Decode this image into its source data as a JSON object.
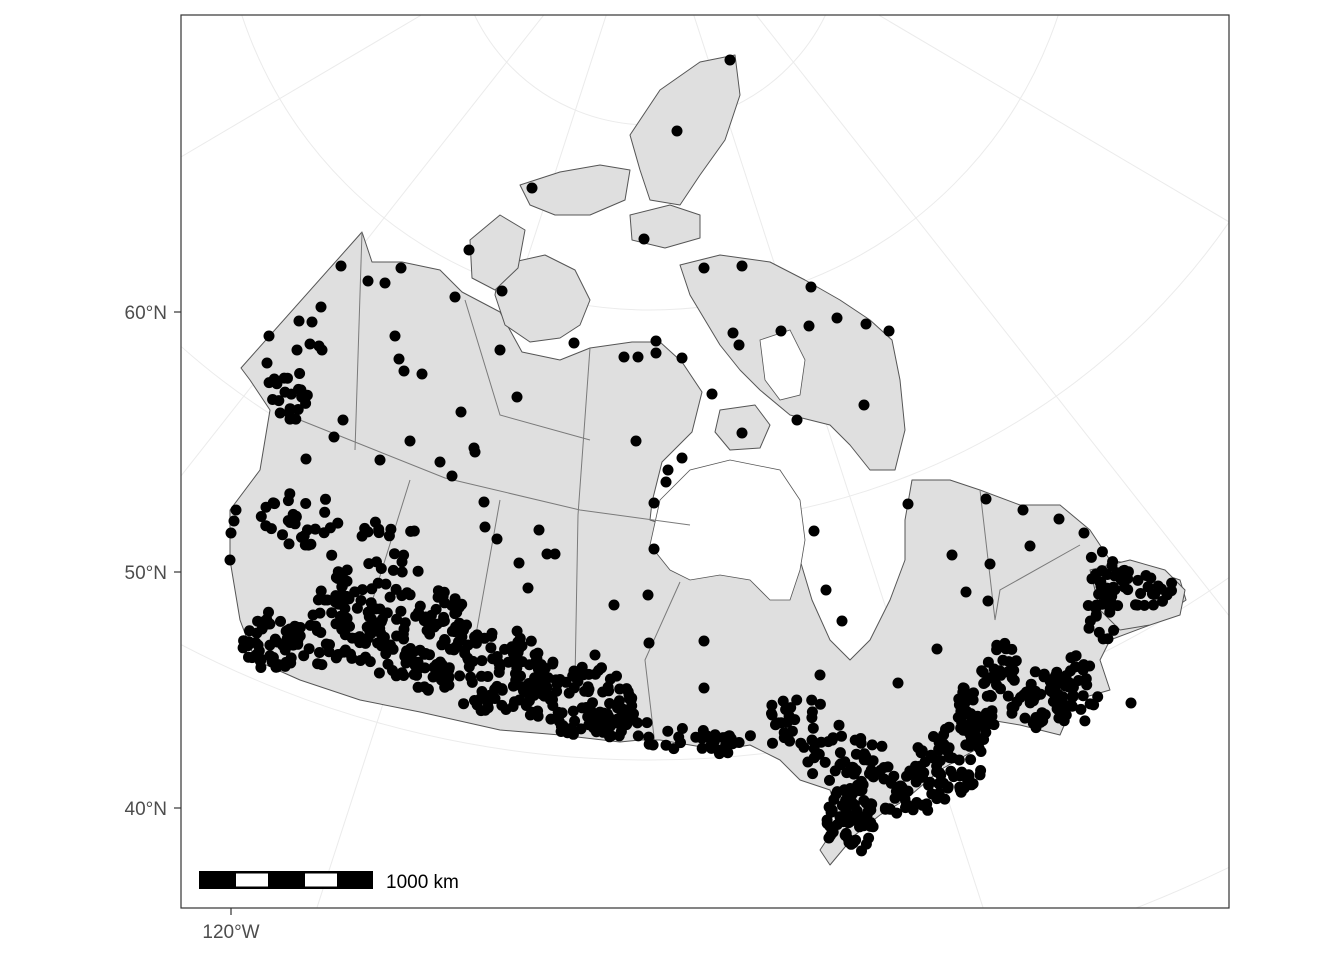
{
  "map": {
    "panel_background": "#ffffff",
    "land_color": "#dfdfdf",
    "point_color": "#000000",
    "grid": true,
    "axis_labels": {
      "lat_60": "60°N",
      "lat_50": "50°N",
      "lat_40": "40°N",
      "lon_120": "120°W"
    },
    "scale_bar": {
      "label": "1000 km"
    }
  }
}
